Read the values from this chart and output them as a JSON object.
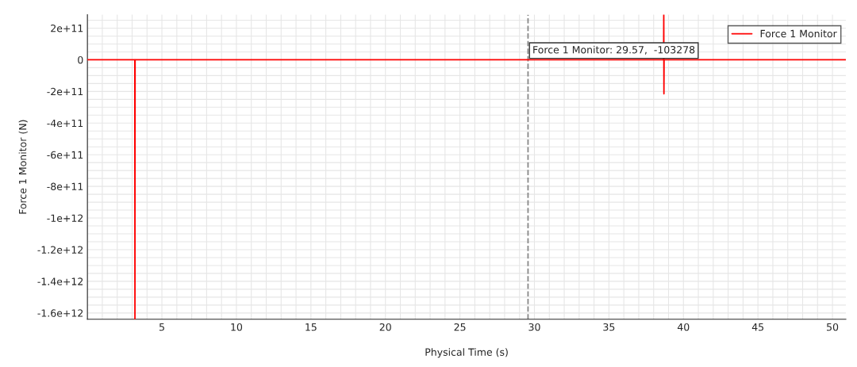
{
  "chart_data": {
    "type": "line",
    "xlabel": "Physical Time (s)",
    "ylabel": "Force 1 Monitor (N)",
    "series": [
      {
        "name": "Force 1 Monitor",
        "color": "#ff0000",
        "x": [
          0,
          3.18,
          3.19,
          3.2,
          38.67,
          38.68,
          38.69,
          38.7,
          50.9
        ],
        "values": [
          0,
          0,
          -1640000000000.0,
          0,
          0,
          285000000000.0,
          -215000000000.0,
          0,
          0
        ]
      }
    ],
    "xlim": [
      0,
      50.9
    ],
    "xticks": [
      5,
      10,
      15,
      20,
      25,
      30,
      35,
      40,
      45,
      50
    ],
    "ylim": [
      -1640000000000.0,
      285000000000.0
    ],
    "yticks": [
      {
        "value": 200000000000.0,
        "label": "2e+11"
      },
      0,
      {
        "value": -200000000000.0,
        "label": "-2e+11"
      },
      {
        "value": -400000000000.0,
        "label": "-4e+11"
      },
      {
        "value": -600000000000.0,
        "label": "-6e+11"
      },
      {
        "value": -800000000000.0,
        "label": "-8e+11"
      },
      {
        "value": -1000000000000.0,
        "label": "-1e+12"
      },
      {
        "value": -1200000000000.0,
        "label": "-1.2e+12"
      },
      {
        "value": -1400000000000.0,
        "label": "-1.4e+12"
      },
      {
        "value": -1600000000000.0,
        "label": "-1.6e+12"
      }
    ],
    "ref_lines": [
      {
        "axis": "x",
        "value": 29.57,
        "color": "#888888",
        "line_style": "dashed"
      }
    ],
    "annotations": [
      {
        "text": "Force 1 Monitor: 29.57,  -103278",
        "x": 29.57,
        "y": -103278
      }
    ],
    "grid": true,
    "legend": "top right",
    "marker": "none",
    "line_style": "solid"
  }
}
